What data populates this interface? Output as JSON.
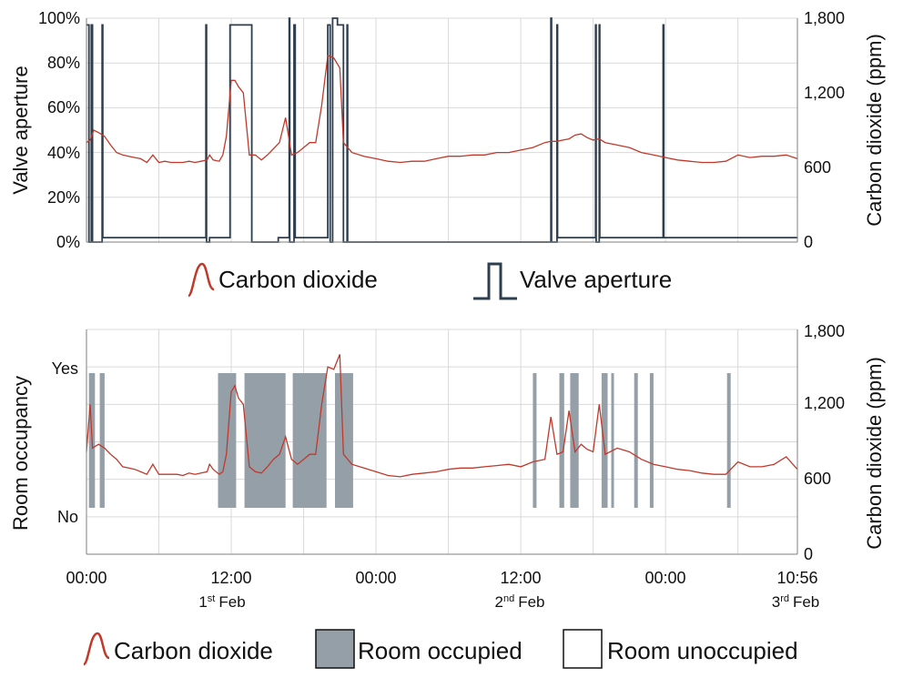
{
  "chart_data": [
    {
      "type": "line",
      "title": "",
      "ylabel": "Valve aperture",
      "ylabel_right": "Carbon dioxide (ppm)",
      "ylim": [
        0,
        100
      ],
      "ylim_right": [
        0,
        1800
      ],
      "yticks": [
        "0%",
        "20%",
        "40%",
        "60%",
        "80%",
        "100%"
      ],
      "yticks_right": [
        "0",
        "600",
        "1,200",
        "1,800"
      ],
      "x_range_hours": [
        0,
        58.93
      ],
      "series": [
        {
          "name": "Carbon dioxide",
          "color": "#c0392b",
          "axis": "right",
          "points": [
            [
              0,
              800
            ],
            [
              0.3,
              820
            ],
            [
              0.6,
              900
            ],
            [
              1,
              880
            ],
            [
              1.5,
              850
            ],
            [
              2,
              780
            ],
            [
              2.5,
              720
            ],
            [
              3,
              700
            ],
            [
              3.5,
              690
            ],
            [
              4,
              680
            ],
            [
              4.5,
              670
            ],
            [
              5,
              640
            ],
            [
              5.5,
              700
            ],
            [
              6,
              640
            ],
            [
              6.5,
              650
            ],
            [
              7,
              640
            ],
            [
              7.5,
              640
            ],
            [
              8,
              640
            ],
            [
              8.5,
              650
            ],
            [
              9,
              640
            ],
            [
              9.5,
              650
            ],
            [
              10,
              660
            ],
            [
              10.2,
              700
            ],
            [
              10.5,
              660
            ],
            [
              11,
              650
            ],
            [
              11.3,
              700
            ],
            [
              11.6,
              850
            ],
            [
              12,
              1300
            ],
            [
              12.3,
              1300
            ],
            [
              12.6,
              1250
            ],
            [
              13,
              1200
            ],
            [
              13.5,
              700
            ],
            [
              14,
              700
            ],
            [
              14.5,
              660
            ],
            [
              15,
              700
            ],
            [
              15.5,
              750
            ],
            [
              16,
              800
            ],
            [
              16.5,
              1000
            ],
            [
              17,
              700
            ],
            [
              17.5,
              720
            ],
            [
              18,
              760
            ],
            [
              18.5,
              800
            ],
            [
              19,
              800
            ],
            [
              19.5,
              1100
            ],
            [
              20,
              1500
            ],
            [
              20.5,
              1480
            ],
            [
              21,
              1400
            ],
            [
              21.3,
              800
            ],
            [
              22,
              720
            ],
            [
              23,
              690
            ],
            [
              24,
              670
            ],
            [
              25,
              650
            ],
            [
              26,
              640
            ],
            [
              27,
              650
            ],
            [
              28,
              650
            ],
            [
              29,
              670
            ],
            [
              30,
              690
            ],
            [
              31,
              690
            ],
            [
              32,
              700
            ],
            [
              33,
              700
            ],
            [
              34,
              720
            ],
            [
              35,
              720
            ],
            [
              36,
              740
            ],
            [
              37,
              760
            ],
            [
              38,
              800
            ],
            [
              38.5,
              810
            ],
            [
              39,
              810
            ],
            [
              39.5,
              820
            ],
            [
              40,
              830
            ],
            [
              40.5,
              860
            ],
            [
              41,
              870
            ],
            [
              41.5,
              840
            ],
            [
              42,
              820
            ],
            [
              42.5,
              830
            ],
            [
              43,
              800
            ],
            [
              44,
              780
            ],
            [
              45,
              760
            ],
            [
              46,
              720
            ],
            [
              47,
              700
            ],
            [
              48,
              680
            ],
            [
              49,
              660
            ],
            [
              50,
              650
            ],
            [
              51,
              640
            ],
            [
              52,
              640
            ],
            [
              53,
              650
            ],
            [
              54,
              700
            ],
            [
              55,
              680
            ],
            [
              56,
              690
            ],
            [
              57,
              690
            ],
            [
              58,
              700
            ],
            [
              58.93,
              670
            ]
          ]
        },
        {
          "name": "Valve aperture",
          "color": "#2d3e4e",
          "axis": "left",
          "points": [
            [
              0,
              97
            ],
            [
              0.2,
              97
            ],
            [
              0.2,
              0
            ],
            [
              0.4,
              0
            ],
            [
              0.4,
              97
            ],
            [
              0.5,
              97
            ],
            [
              0.5,
              0
            ],
            [
              1.3,
              0
            ],
            [
              1.3,
              97
            ],
            [
              1.35,
              97
            ],
            [
              1.35,
              2
            ],
            [
              9.9,
              2
            ],
            [
              9.9,
              97
            ],
            [
              9.95,
              97
            ],
            [
              9.95,
              0
            ],
            [
              10.2,
              0
            ],
            [
              10.2,
              2
            ],
            [
              11.9,
              2
            ],
            [
              11.9,
              97
            ],
            [
              13.7,
              97
            ],
            [
              13.7,
              0
            ],
            [
              15.9,
              0
            ],
            [
              15.9,
              2
            ],
            [
              16.8,
              2
            ],
            [
              16.8,
              100
            ],
            [
              16.85,
              100
            ],
            [
              16.85,
              0
            ],
            [
              17.2,
              0
            ],
            [
              17.2,
              97
            ],
            [
              17.3,
              97
            ],
            [
              17.3,
              2
            ],
            [
              20,
              2
            ],
            [
              20,
              97
            ],
            [
              20.2,
              97
            ],
            [
              20.2,
              0
            ],
            [
              20.4,
              0
            ],
            [
              20.4,
              100
            ],
            [
              20.8,
              100
            ],
            [
              20.8,
              97
            ],
            [
              21.3,
              97
            ],
            [
              21.3,
              0
            ],
            [
              21.6,
              0
            ],
            [
              21.6,
              97
            ],
            [
              21.65,
              97
            ],
            [
              21.65,
              0
            ],
            [
              38.5,
              0
            ],
            [
              38.5,
              100
            ],
            [
              38.55,
              100
            ],
            [
              38.55,
              0
            ],
            [
              39,
              0
            ],
            [
              39,
              97
            ],
            [
              39.05,
              97
            ],
            [
              39.05,
              2
            ],
            [
              42.2,
              2
            ],
            [
              42.2,
              97
            ],
            [
              42.25,
              97
            ],
            [
              42.25,
              0
            ],
            [
              42.5,
              0
            ],
            [
              42.5,
              97
            ],
            [
              42.55,
              97
            ],
            [
              42.55,
              2
            ],
            [
              47.8,
              2
            ],
            [
              47.8,
              97
            ],
            [
              47.85,
              97
            ],
            [
              47.85,
              2
            ],
            [
              58.93,
              2
            ]
          ]
        }
      ],
      "legend": [
        "Carbon dioxide",
        "Valve aperture"
      ]
    },
    {
      "type": "line",
      "title": "",
      "ylabel": "Room occupancy",
      "ylabel_right": "Carbon dioxide (ppm)",
      "ylim_right": [
        0,
        1800
      ],
      "yticks": [
        "No",
        "Yes"
      ],
      "yticks_right": [
        "0",
        "600",
        "1,200",
        "1,800"
      ],
      "xticks": [
        "00:00",
        "12:00",
        "00:00",
        "12:00",
        "00:00",
        "10:56"
      ],
      "xtick_hours": [
        0,
        12,
        24,
        36,
        48,
        58.93
      ],
      "date_labels": [
        {
          "day": "1",
          "suffix": "st",
          "month": "Feb",
          "hour": 12
        },
        {
          "day": "2",
          "suffix": "nd",
          "month": "Feb",
          "hour": 36
        },
        {
          "day": "3",
          "suffix": "rd",
          "month": "Feb",
          "hour": 58.93
        }
      ],
      "occupied_intervals_hours": [
        [
          0.2,
          0.7
        ],
        [
          1.1,
          1.5
        ],
        [
          10.9,
          12.4
        ],
        [
          13.1,
          16.5
        ],
        [
          17.1,
          19.9
        ],
        [
          20.6,
          22.1
        ],
        [
          37,
          37.3
        ],
        [
          39.2,
          39.6
        ],
        [
          40.1,
          40.8
        ],
        [
          42.7,
          43.2
        ],
        [
          43.5,
          43.7
        ],
        [
          45.4,
          45.7
        ],
        [
          46.7,
          47
        ],
        [
          53.1,
          53.4
        ]
      ],
      "series": [
        {
          "name": "Carbon dioxide",
          "color": "#c0392b",
          "axis": "right",
          "points": [
            [
              0,
              820
            ],
            [
              0.3,
              1200
            ],
            [
              0.5,
              850
            ],
            [
              1,
              880
            ],
            [
              1.5,
              850
            ],
            [
              2,
              800
            ],
            [
              2.5,
              760
            ],
            [
              3,
              700
            ],
            [
              3.5,
              690
            ],
            [
              4,
              680
            ],
            [
              4.5,
              660
            ],
            [
              5,
              640
            ],
            [
              5.5,
              720
            ],
            [
              6,
              640
            ],
            [
              6.5,
              640
            ],
            [
              7,
              640
            ],
            [
              7.5,
              640
            ],
            [
              8,
              630
            ],
            [
              8.5,
              650
            ],
            [
              9,
              640
            ],
            [
              9.5,
              650
            ],
            [
              10,
              660
            ],
            [
              10.2,
              720
            ],
            [
              10.5,
              680
            ],
            [
              11,
              640
            ],
            [
              11.3,
              660
            ],
            [
              11.6,
              800
            ],
            [
              12,
              1300
            ],
            [
              12.3,
              1350
            ],
            [
              12.6,
              1250
            ],
            [
              13,
              1200
            ],
            [
              13.5,
              700
            ],
            [
              14,
              660
            ],
            [
              14.5,
              650
            ],
            [
              15,
              700
            ],
            [
              15.5,
              760
            ],
            [
              16,
              800
            ],
            [
              16.5,
              940
            ],
            [
              17,
              760
            ],
            [
              17.5,
              720
            ],
            [
              18,
              760
            ],
            [
              18.5,
              800
            ],
            [
              19,
              800
            ],
            [
              19.5,
              1200
            ],
            [
              20,
              1500
            ],
            [
              20.5,
              1480
            ],
            [
              21,
              1600
            ],
            [
              21.3,
              800
            ],
            [
              22,
              720
            ],
            [
              23,
              690
            ],
            [
              24,
              660
            ],
            [
              25,
              630
            ],
            [
              26,
              620
            ],
            [
              27,
              640
            ],
            [
              28,
              650
            ],
            [
              29,
              660
            ],
            [
              30,
              680
            ],
            [
              31,
              690
            ],
            [
              32,
              690
            ],
            [
              33,
              700
            ],
            [
              34,
              710
            ],
            [
              35,
              720
            ],
            [
              36,
              700
            ],
            [
              37,
              740
            ],
            [
              38,
              760
            ],
            [
              38.5,
              1100
            ],
            [
              39,
              800
            ],
            [
              39.5,
              820
            ],
            [
              40,
              1150
            ],
            [
              40.5,
              820
            ],
            [
              41,
              880
            ],
            [
              41.5,
              840
            ],
            [
              42,
              820
            ],
            [
              42.5,
              1200
            ],
            [
              43,
              800
            ],
            [
              44,
              850
            ],
            [
              45,
              820
            ],
            [
              46,
              760
            ],
            [
              47,
              720
            ],
            [
              48,
              700
            ],
            [
              49,
              680
            ],
            [
              50,
              670
            ],
            [
              51,
              650
            ],
            [
              52,
              640
            ],
            [
              53,
              640
            ],
            [
              54,
              740
            ],
            [
              55,
              700
            ],
            [
              56,
              700
            ],
            [
              57,
              720
            ],
            [
              58,
              780
            ],
            [
              58.93,
              680
            ]
          ]
        }
      ],
      "legend": [
        "Carbon dioxide",
        "Room occupied",
        "Room unoccupied"
      ]
    }
  ]
}
